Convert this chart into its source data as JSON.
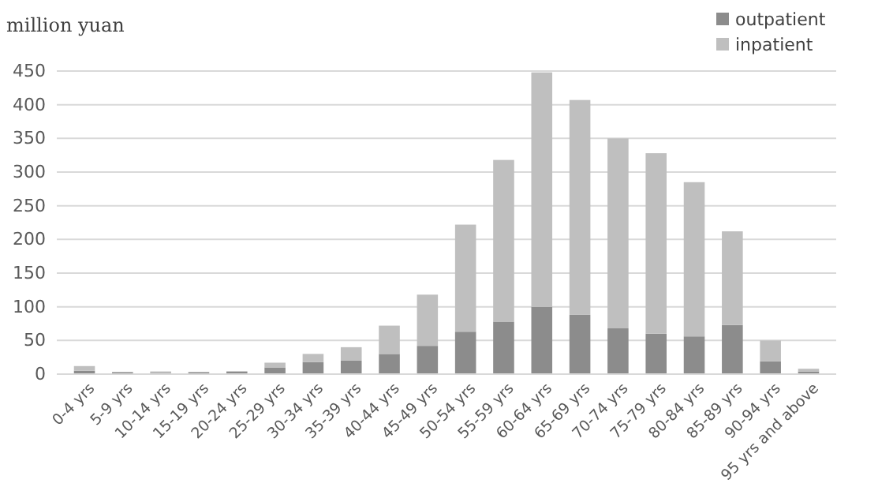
{
  "chart_data": {
    "type": "bar",
    "ylabel": "million yuan",
    "stacked": true,
    "grid": "y",
    "legend": "top right",
    "categories": [
      "0-4 yrs",
      "5-9 yrs",
      "10-14 yrs",
      "15-19 yrs",
      "20-24 yrs",
      "25-29 yrs",
      "30-34 yrs",
      "35-39 yrs",
      "40-44 yrs",
      "45-49 yrs",
      "50-54 yrs",
      "55-59 yrs",
      "60-64 yrs",
      "65-69 yrs",
      "70-74 yrs",
      "75-79 yrs",
      "80-84 yrs",
      "85-89 yrs",
      "90-94 yrs",
      "95 yrs and above"
    ],
    "series": [
      {
        "name": "outpatient",
        "color": "#8c8c8c",
        "values": [
          5,
          3,
          2,
          3,
          4,
          10,
          18,
          20,
          30,
          42,
          63,
          78,
          100,
          88,
          68,
          60,
          56,
          73,
          19,
          4
        ]
      },
      {
        "name": "inpatient",
        "color": "#bfbfbf",
        "values": [
          7,
          null,
          2,
          null,
          null,
          7,
          12,
          20,
          42,
          76,
          159,
          240,
          348,
          319,
          282,
          268,
          229,
          139,
          31,
          4
        ]
      }
    ],
    "ylim": [
      0,
      450
    ],
    "yticks": [
      0,
      50,
      100,
      150,
      200,
      250,
      300,
      350,
      400,
      450
    ]
  }
}
